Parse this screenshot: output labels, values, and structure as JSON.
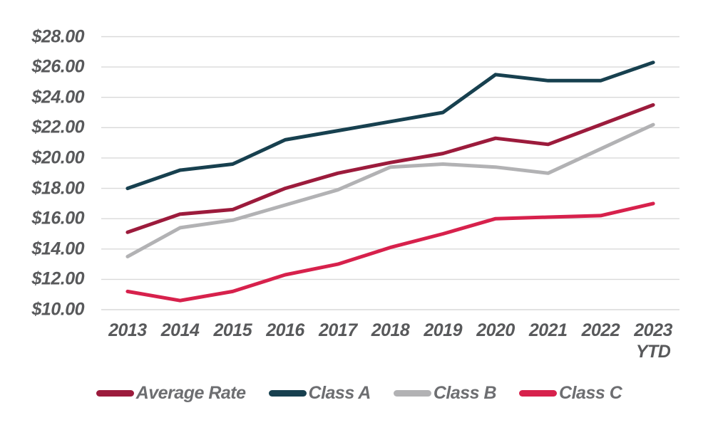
{
  "chart_data": {
    "type": "line",
    "title": "",
    "xlabel": "",
    "ylabel": "",
    "categories": [
      "2013",
      "2014",
      "2015",
      "2016",
      "2017",
      "2018",
      "2019",
      "2020",
      "2021",
      "2022",
      "2023 YTD"
    ],
    "xticks": [
      [
        "2013"
      ],
      [
        "2014"
      ],
      [
        "2015"
      ],
      [
        "2016"
      ],
      [
        "2017"
      ],
      [
        "2018"
      ],
      [
        "2019"
      ],
      [
        "2020"
      ],
      [
        "2021"
      ],
      [
        "2022"
      ],
      [
        "2023",
        "YTD"
      ]
    ],
    "series": [
      {
        "name": "Average Rate",
        "color": "#9C1B3C",
        "values": [
          15.1,
          16.3,
          16.6,
          18.0,
          19.0,
          19.7,
          20.3,
          21.3,
          20.9,
          22.2,
          23.5
        ]
      },
      {
        "name": "Class A",
        "color": "#17404F",
        "values": [
          18.0,
          19.2,
          19.6,
          21.2,
          21.8,
          22.4,
          23.0,
          25.5,
          25.1,
          25.1,
          26.3
        ]
      },
      {
        "name": "Class B",
        "color": "#B2B2B4",
        "values": [
          13.5,
          15.4,
          15.9,
          16.9,
          17.9,
          19.4,
          19.6,
          19.4,
          19.0,
          20.6,
          22.2
        ]
      },
      {
        "name": "Class C",
        "color": "#D7214C",
        "values": [
          11.2,
          10.6,
          11.2,
          12.3,
          13.0,
          14.1,
          15.0,
          16.0,
          16.1,
          16.2,
          17.0
        ]
      }
    ],
    "draw_order": [
      2,
      3,
      1,
      0
    ],
    "ylim": [
      10,
      28
    ],
    "ytick_step": 2,
    "yticks": [
      {
        "value": 28,
        "label": "$28.00"
      },
      {
        "value": 26,
        "label": "$26.00"
      },
      {
        "value": 24,
        "label": "$24.00"
      },
      {
        "value": 22,
        "label": "$22.00"
      },
      {
        "value": 20,
        "label": "$20.00"
      },
      {
        "value": 18,
        "label": "$18.00"
      },
      {
        "value": 16,
        "label": "$16.00"
      },
      {
        "value": 14,
        "label": "$14.00"
      },
      {
        "value": 12,
        "label": "$12.00"
      },
      {
        "value": 10,
        "label": "$10.00"
      }
    ],
    "grid": "horizontal",
    "legend_position": "bottom",
    "legend": [
      "Average Rate",
      "Class A",
      "Class B",
      "Class C"
    ]
  },
  "colors": {
    "background": "#FFFFFF",
    "grid": "#D9D9D9",
    "axis_text": "#58595B",
    "legend_text": "#6D6E71"
  }
}
